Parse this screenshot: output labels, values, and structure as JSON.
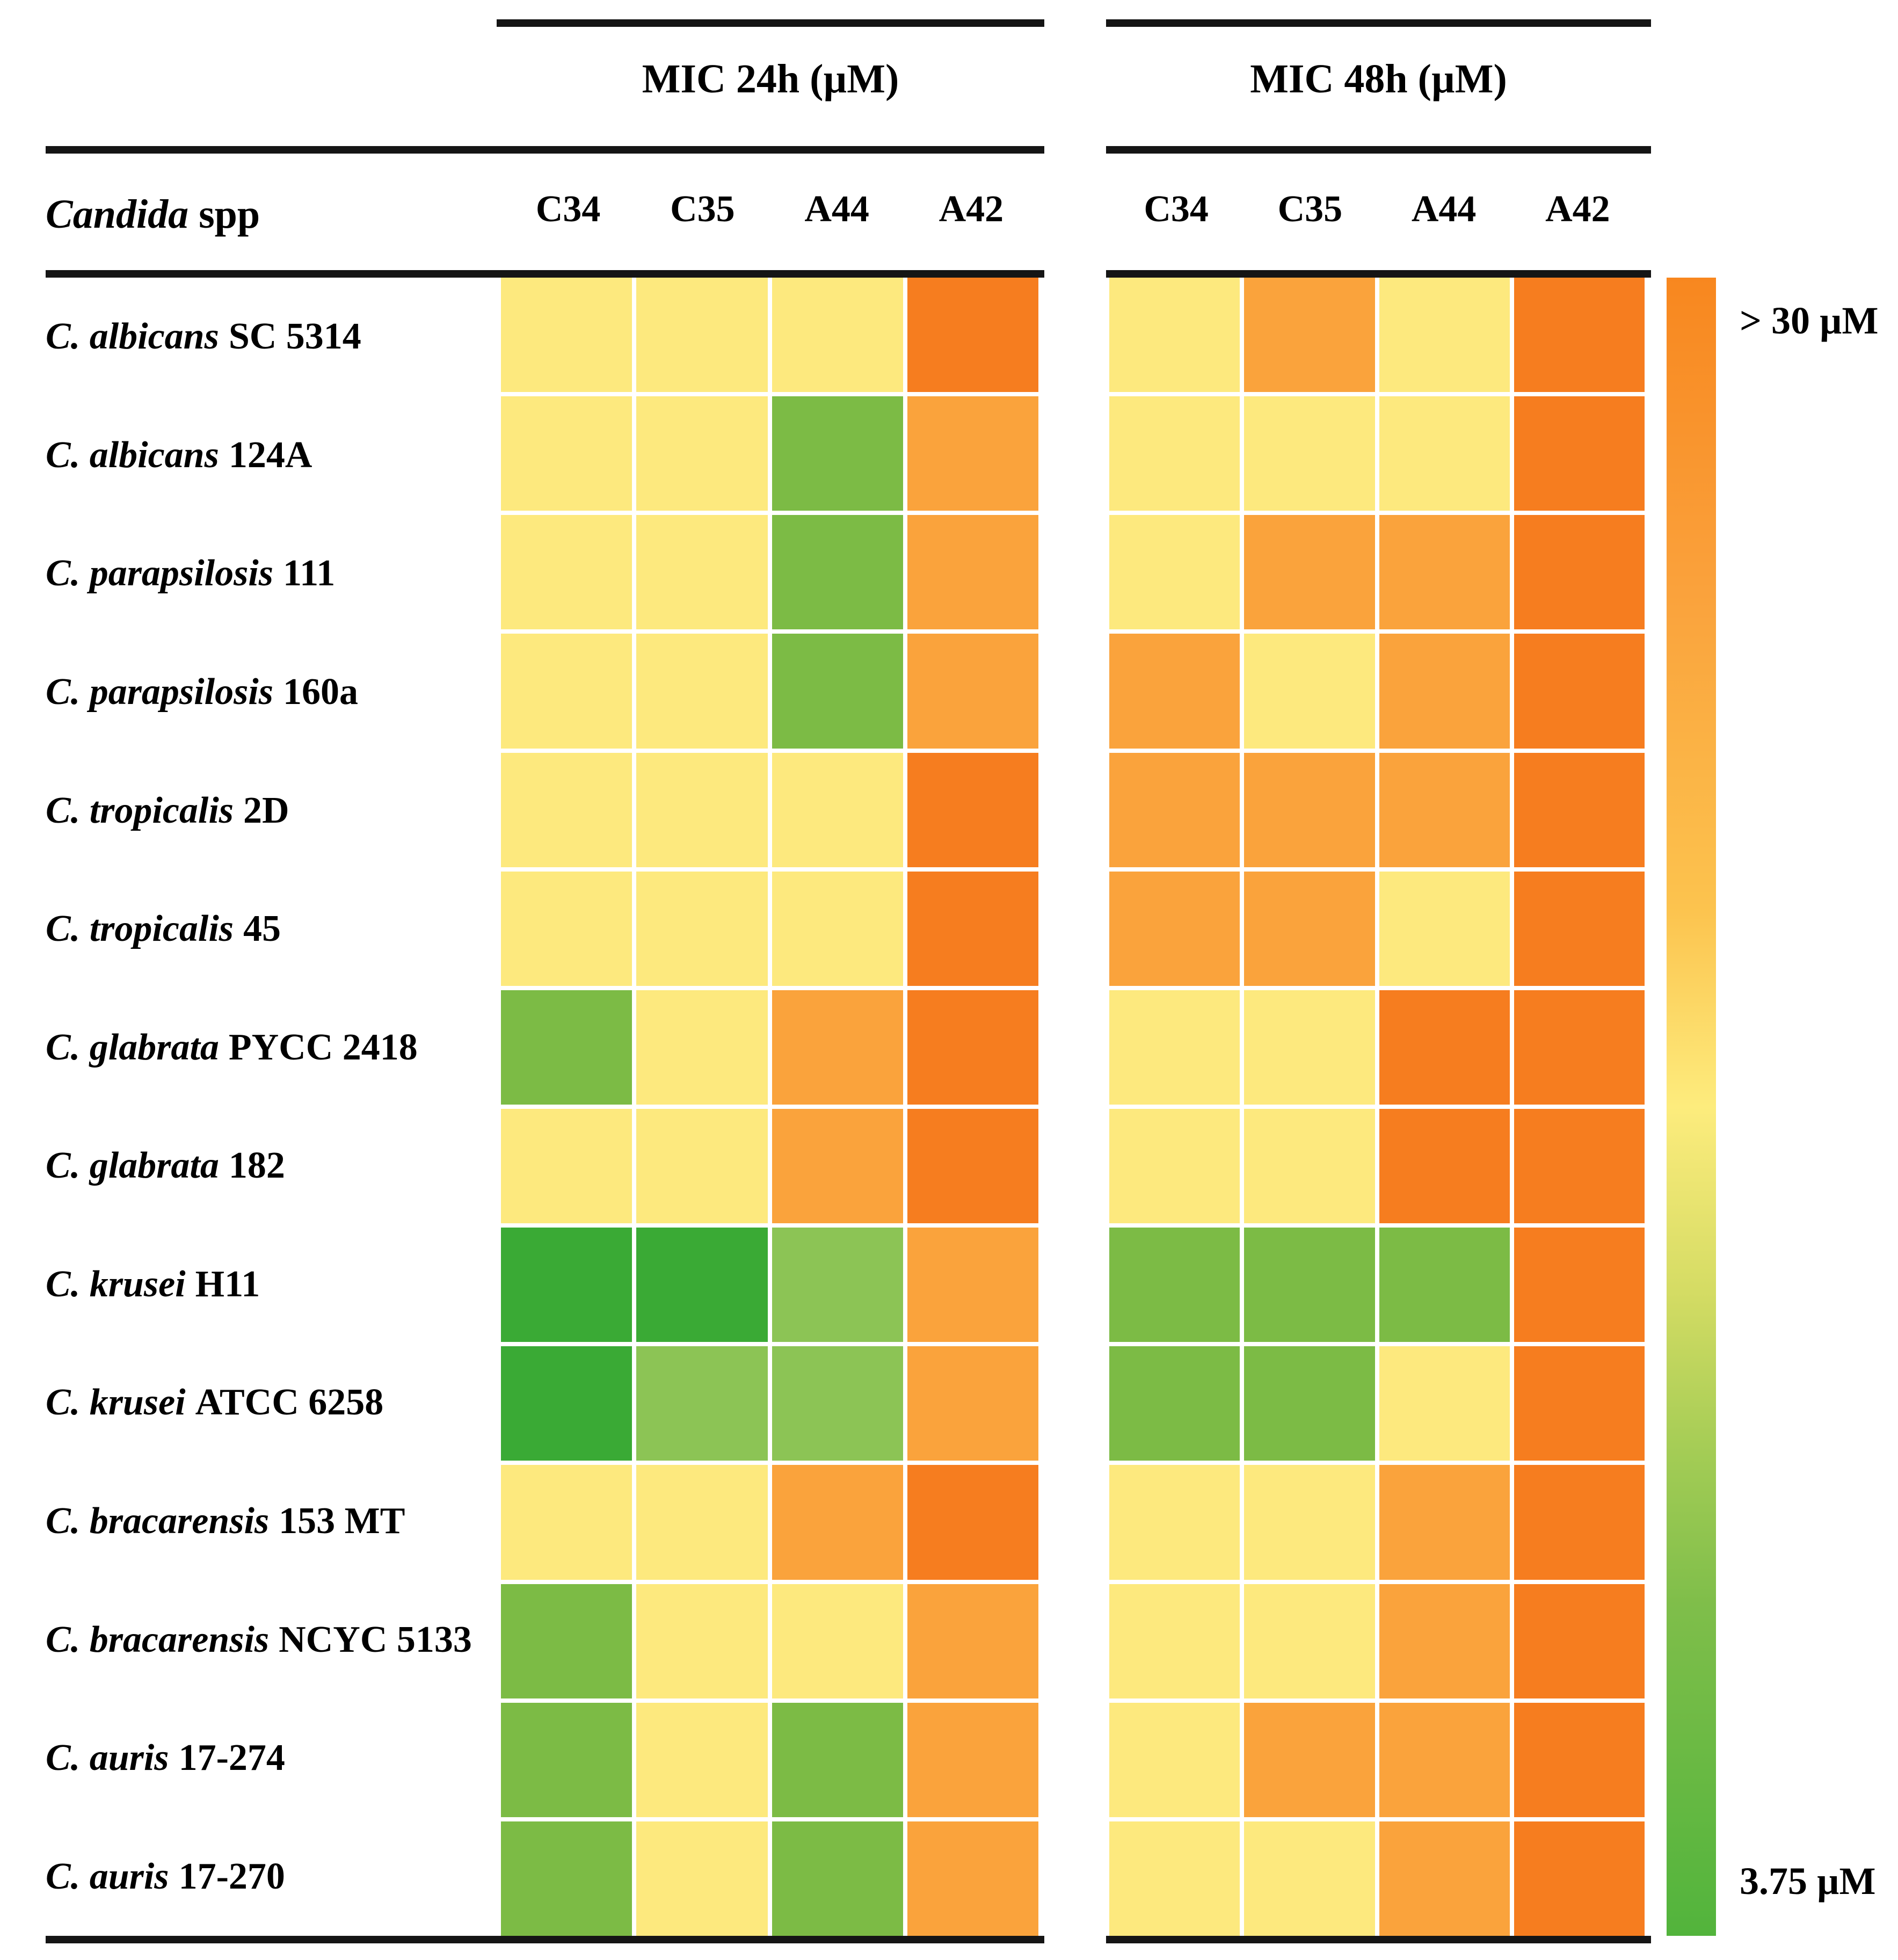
{
  "figure": {
    "row_header": {
      "italic": "Candida",
      "roman": "spp"
    },
    "groups": [
      {
        "title": "MIC 24h (µM)",
        "columns": [
          "C34",
          "C35",
          "A44",
          "A42"
        ]
      },
      {
        "title": "MIC 48h (µM)",
        "columns": [
          "C34",
          "C35",
          "A44",
          "A42"
        ]
      }
    ],
    "legend": {
      "top_label": "> 30 µM",
      "bottom_label": "3.75 µM"
    }
  },
  "palette": {
    "yellow": "#fde97e",
    "light-orange": "#faa33c",
    "dark-orange": "#f67d1f",
    "green": "#7cbb45",
    "light-green": "#8cc455",
    "dark-green": "#3aaa35"
  },
  "chart_data": {
    "type": "heatmap",
    "title": "MIC of compounds C34, C35, A44, A42 against Candida spp at 24h and 48h",
    "columns": [
      "C34",
      "C35",
      "A44",
      "A42"
    ],
    "rows": [
      {
        "species": "C. albicans",
        "strain": "SC 5314"
      },
      {
        "species": "C. albicans",
        "strain": "124A"
      },
      {
        "species": "C. parapsilosis",
        "strain": "111"
      },
      {
        "species": "C. parapsilosis",
        "strain": "160a"
      },
      {
        "species": "C. tropicalis",
        "strain": "2D"
      },
      {
        "species": "C. tropicalis",
        "strain": "45"
      },
      {
        "species": "C. glabrata",
        "strain": "PYCC 2418"
      },
      {
        "species": "C. glabrata",
        "strain": "182"
      },
      {
        "species": "C. krusei",
        "strain": "H11"
      },
      {
        "species": "C. krusei",
        "strain": "ATCC 6258"
      },
      {
        "species": "C. bracarensis",
        "strain": "153 MT"
      },
      {
        "species": "C. bracarensis",
        "strain": "NCYC 5133"
      },
      {
        "species": "C. auris",
        "strain": "17-274"
      },
      {
        "species": "C. auris",
        "strain": "17-270"
      }
    ],
    "mic24": [
      [
        "yellow",
        "yellow",
        "yellow",
        "dark-orange"
      ],
      [
        "yellow",
        "yellow",
        "green",
        "light-orange"
      ],
      [
        "yellow",
        "yellow",
        "green",
        "light-orange"
      ],
      [
        "yellow",
        "yellow",
        "green",
        "light-orange"
      ],
      [
        "yellow",
        "yellow",
        "yellow",
        "dark-orange"
      ],
      [
        "yellow",
        "yellow",
        "yellow",
        "dark-orange"
      ],
      [
        "green",
        "yellow",
        "light-orange",
        "dark-orange"
      ],
      [
        "yellow",
        "yellow",
        "light-orange",
        "dark-orange"
      ],
      [
        "dark-green",
        "dark-green",
        "light-green",
        "light-orange"
      ],
      [
        "dark-green",
        "light-green",
        "light-green",
        "light-orange"
      ],
      [
        "yellow",
        "yellow",
        "light-orange",
        "dark-orange"
      ],
      [
        "green",
        "yellow",
        "yellow",
        "light-orange"
      ],
      [
        "green",
        "yellow",
        "green",
        "light-orange"
      ],
      [
        "green",
        "yellow",
        "green",
        "light-orange"
      ]
    ],
    "mic48": [
      [
        "yellow",
        "light-orange",
        "yellow",
        "dark-orange"
      ],
      [
        "yellow",
        "yellow",
        "yellow",
        "dark-orange"
      ],
      [
        "yellow",
        "light-orange",
        "light-orange",
        "dark-orange"
      ],
      [
        "light-orange",
        "yellow",
        "light-orange",
        "dark-orange"
      ],
      [
        "light-orange",
        "light-orange",
        "light-orange",
        "dark-orange"
      ],
      [
        "light-orange",
        "light-orange",
        "yellow",
        "dark-orange"
      ],
      [
        "yellow",
        "yellow",
        "dark-orange",
        "dark-orange"
      ],
      [
        "yellow",
        "yellow",
        "dark-orange",
        "dark-orange"
      ],
      [
        "green",
        "green",
        "green",
        "dark-orange"
      ],
      [
        "green",
        "green",
        "yellow",
        "dark-orange"
      ],
      [
        "yellow",
        "yellow",
        "light-orange",
        "dark-orange"
      ],
      [
        "yellow",
        "yellow",
        "light-orange",
        "dark-orange"
      ],
      [
        "yellow",
        "light-orange",
        "light-orange",
        "dark-orange"
      ],
      [
        "yellow",
        "yellow",
        "light-orange",
        "dark-orange"
      ]
    ],
    "scale": {
      "min_label": "3.75 µM",
      "max_label": "> 30 µM",
      "legend_position": "right"
    }
  }
}
